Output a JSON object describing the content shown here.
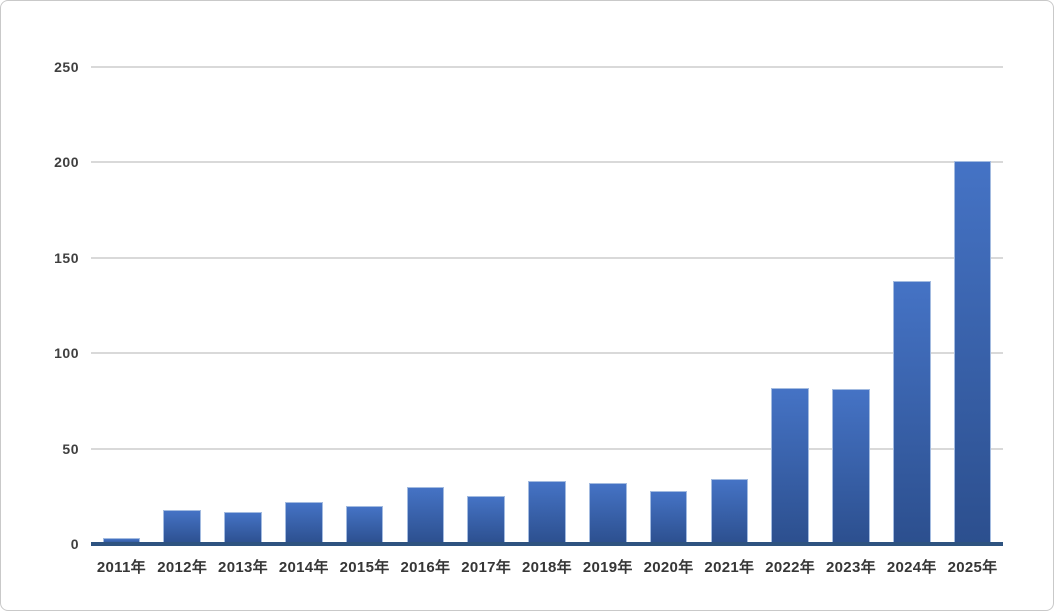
{
  "window": {
    "background": "#ffffff",
    "border_color": "#c9c9c9"
  },
  "chart_data": {
    "type": "bar",
    "title": "",
    "xlabel": "",
    "ylabel": "",
    "categories": [
      "2011年",
      "2012年",
      "2013年",
      "2014年",
      "2015年",
      "2016年",
      "2017年",
      "2018年",
      "2019年",
      "2020年",
      "2021年",
      "2022年",
      "2023年",
      "2024年",
      "2025年"
    ],
    "values": [
      3,
      18,
      17,
      22,
      20,
      30,
      25,
      33,
      32,
      28,
      34,
      82,
      81,
      138,
      201
    ],
    "ylim": [
      0,
      250
    ],
    "yticks": [
      0,
      50,
      100,
      150,
      200,
      250
    ],
    "grid": true,
    "legend": false,
    "colors": {
      "bar_gradient_top": "#4573C5",
      "bar_gradient_bottom": "#2C4F8E",
      "bar_border": "#a3bbe0",
      "gridline": "#d9d9d9",
      "axis_line": "#2e5380",
      "tick_label": "#3f3f3f"
    }
  }
}
